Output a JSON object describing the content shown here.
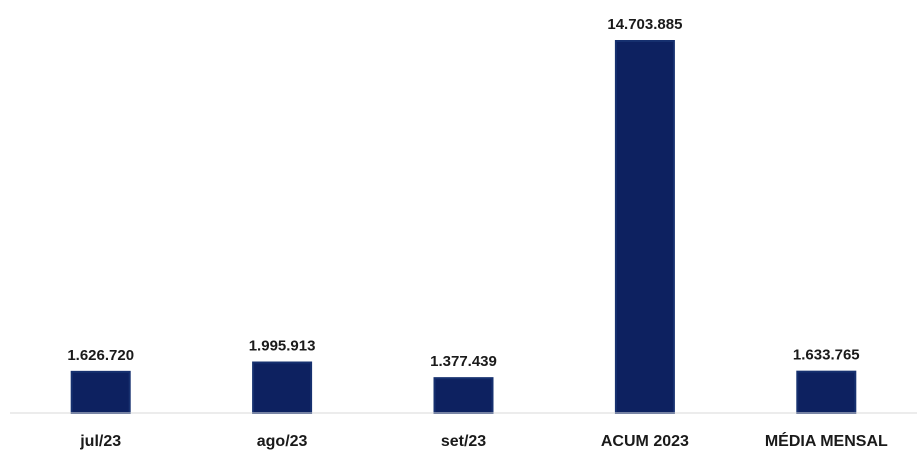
{
  "chart_data": {
    "type": "bar",
    "categories": [
      "jul/23",
      "ago/23",
      "set/23",
      "ACUM 2023",
      "MÉDIA MENSAL"
    ],
    "values": [
      1626720,
      1995913,
      1377439,
      14703885,
      1633765
    ],
    "data_labels": [
      "1.626.720",
      "1.995.913",
      "1.377.439",
      "14.703.885",
      "1.633.765"
    ],
    "title": "",
    "xlabel": "",
    "ylabel": "",
    "ylim": [
      0,
      14703885
    ],
    "grid": false,
    "legend": "none",
    "colors": {
      "bar_fill": "#0d2160",
      "bar_edge": "#16306f",
      "axis_line": "#d9d9d9",
      "text": "#1a1a1a"
    }
  }
}
